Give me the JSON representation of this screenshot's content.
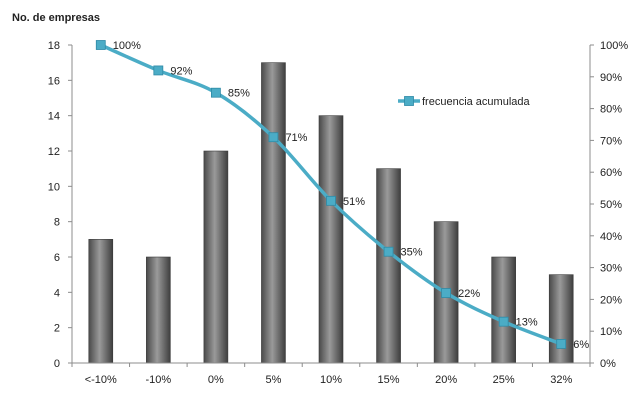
{
  "chart_data": {
    "type": "bar",
    "title": "",
    "ylabel": "No. de empresas",
    "xlabel": "",
    "categories": [
      "<-10%",
      "-10%",
      "0%",
      "5%",
      "10%",
      "15%",
      "20%",
      "25%",
      "32%"
    ],
    "values": [
      7,
      6,
      12,
      17,
      14,
      11,
      8,
      6,
      5
    ],
    "ylim": [
      0,
      18
    ],
    "yticks": [
      "0",
      "2",
      "4",
      "6",
      "8",
      "10",
      "12",
      "14",
      "16",
      "18"
    ],
    "y2lim": [
      0,
      100
    ],
    "y2ticks": [
      "0%",
      "10%",
      "20%",
      "30%",
      "40%",
      "50%",
      "60%",
      "70%",
      "80%",
      "90%",
      "100%"
    ],
    "series": [
      {
        "name": "frecuencia acumulada",
        "type": "line",
        "axis": "right",
        "values": [
          100,
          92,
          85,
          71,
          51,
          35,
          22,
          13,
          6
        ],
        "labels": [
          "100%",
          "92%",
          "85%",
          "71%",
          "51%",
          "35%",
          "22%",
          "13%",
          "6%"
        ]
      }
    ],
    "legend": "top-right",
    "grid": false,
    "colors": {
      "bar": "#6e6e6e",
      "line": "#4bacc6",
      "axis": "#8c8c8c"
    }
  }
}
